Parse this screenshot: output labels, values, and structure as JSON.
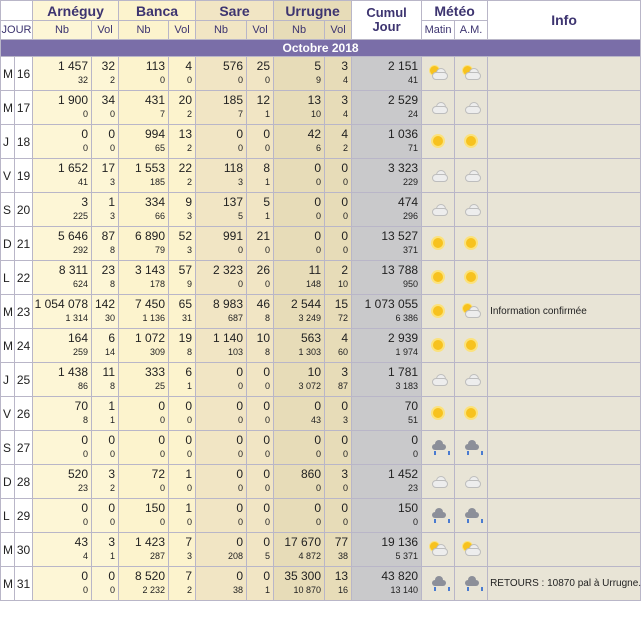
{
  "headers": {
    "sites": [
      "Arnéguy",
      "Banca",
      "Sare",
      "Urrugne"
    ],
    "cumul": "Cumul Jour",
    "meteo": "Météo",
    "info": "Info",
    "jour": "JOUR",
    "nb": "Nb",
    "vol": "Vol",
    "matin": "Matin",
    "am": "A.M."
  },
  "month_label": "Octobre 2018",
  "rows": [
    {
      "dow": "M",
      "day": "16",
      "arn": [
        "1 457",
        "32",
        "32",
        "2"
      ],
      "ban": [
        "113",
        "4",
        "0",
        "0"
      ],
      "sar": [
        "576",
        "25",
        "0",
        "0"
      ],
      "urr": [
        "5",
        "3",
        "9",
        "4"
      ],
      "cum": [
        "2 151",
        "41"
      ],
      "matin": "partly-sunny-icon",
      "am": "partly-sunny-icon",
      "info": ""
    },
    {
      "dow": "M",
      "day": "17",
      "arn": [
        "1 900",
        "34",
        "0",
        "0"
      ],
      "ban": [
        "431",
        "20",
        "7",
        "2"
      ],
      "sar": [
        "185",
        "12",
        "7",
        "1"
      ],
      "urr": [
        "13",
        "3",
        "10",
        "4"
      ],
      "cum": [
        "2 529",
        "24"
      ],
      "matin": "cloudy-icon",
      "am": "cloudy-icon",
      "info": ""
    },
    {
      "dow": "J",
      "day": "18",
      "arn": [
        "0",
        "0",
        "0",
        "0"
      ],
      "ban": [
        "994",
        "13",
        "65",
        "2"
      ],
      "sar": [
        "0",
        "0",
        "0",
        "0"
      ],
      "urr": [
        "42",
        "4",
        "6",
        "2"
      ],
      "cum": [
        "1 036",
        "71"
      ],
      "matin": "sunny-icon",
      "am": "sunny-icon",
      "info": ""
    },
    {
      "dow": "V",
      "day": "19",
      "arn": [
        "1 652",
        "17",
        "41",
        "3"
      ],
      "ban": [
        "1 553",
        "22",
        "185",
        "2"
      ],
      "sar": [
        "118",
        "8",
        "3",
        "1"
      ],
      "urr": [
        "0",
        "0",
        "0",
        "0"
      ],
      "cum": [
        "3 323",
        "229"
      ],
      "matin": "cloudy-icon",
      "am": "cloudy-icon",
      "info": ""
    },
    {
      "dow": "S",
      "day": "20",
      "arn": [
        "3",
        "1",
        "225",
        "3"
      ],
      "ban": [
        "334",
        "9",
        "66",
        "3"
      ],
      "sar": [
        "137",
        "5",
        "5",
        "1"
      ],
      "urr": [
        "0",
        "0",
        "0",
        "0"
      ],
      "cum": [
        "474",
        "296"
      ],
      "matin": "cloudy-icon",
      "am": "cloudy-icon",
      "info": ""
    },
    {
      "dow": "D",
      "day": "21",
      "arn": [
        "5 646",
        "87",
        "292",
        "8"
      ],
      "ban": [
        "6 890",
        "52",
        "79",
        "3"
      ],
      "sar": [
        "991",
        "21",
        "0",
        "0"
      ],
      "urr": [
        "0",
        "0",
        "0",
        "0"
      ],
      "cum": [
        "13 527",
        "371"
      ],
      "matin": "sunny-icon",
      "am": "sunny-icon",
      "info": ""
    },
    {
      "dow": "L",
      "day": "22",
      "arn": [
        "8 311",
        "23",
        "624",
        "8"
      ],
      "ban": [
        "3 143",
        "57",
        "178",
        "9"
      ],
      "sar": [
        "2 323",
        "26",
        "0",
        "0"
      ],
      "urr": [
        "11",
        "2",
        "148",
        "10"
      ],
      "cum": [
        "13 788",
        "950"
      ],
      "matin": "sunny-icon",
      "am": "sunny-icon",
      "info": ""
    },
    {
      "dow": "M",
      "day": "23",
      "arn": [
        "1 054 078",
        "142",
        "1 314",
        "30"
      ],
      "ban": [
        "7 450",
        "65",
        "1 136",
        "31"
      ],
      "sar": [
        "8 983",
        "46",
        "687",
        "8"
      ],
      "urr": [
        "2 544",
        "15",
        "3 249",
        "72"
      ],
      "cum": [
        "1 073 055",
        "6 386"
      ],
      "matin": "sunny-icon",
      "am": "partly-sunny-icon",
      "info": "Information confirmée"
    },
    {
      "dow": "M",
      "day": "24",
      "arn": [
        "164",
        "6",
        "259",
        "14"
      ],
      "ban": [
        "1 072",
        "19",
        "309",
        "8"
      ],
      "sar": [
        "1 140",
        "10",
        "103",
        "8"
      ],
      "urr": [
        "563",
        "4",
        "1 303",
        "60"
      ],
      "cum": [
        "2 939",
        "1 974"
      ],
      "matin": "sunny-icon",
      "am": "sunny-icon",
      "info": ""
    },
    {
      "dow": "J",
      "day": "25",
      "arn": [
        "1 438",
        "11",
        "86",
        "8"
      ],
      "ban": [
        "333",
        "6",
        "25",
        "1"
      ],
      "sar": [
        "0",
        "0",
        "0",
        "0"
      ],
      "urr": [
        "10",
        "3",
        "3 072",
        "87"
      ],
      "cum": [
        "1 781",
        "3 183"
      ],
      "matin": "cloudy-icon",
      "am": "cloudy-icon",
      "info": ""
    },
    {
      "dow": "V",
      "day": "26",
      "arn": [
        "70",
        "1",
        "8",
        "1"
      ],
      "ban": [
        "0",
        "0",
        "0",
        "0"
      ],
      "sar": [
        "0",
        "0",
        "0",
        "0"
      ],
      "urr": [
        "0",
        "0",
        "43",
        "3"
      ],
      "cum": [
        "70",
        "51"
      ],
      "matin": "sunny-icon",
      "am": "sunny-icon",
      "info": ""
    },
    {
      "dow": "S",
      "day": "27",
      "arn": [
        "0",
        "0",
        "0",
        "0"
      ],
      "ban": [
        "0",
        "0",
        "0",
        "0"
      ],
      "sar": [
        "0",
        "0",
        "0",
        "0"
      ],
      "urr": [
        "0",
        "0",
        "0",
        "0"
      ],
      "cum": [
        "0",
        "0"
      ],
      "matin": "rain-icon",
      "am": "rain-icon",
      "info": ""
    },
    {
      "dow": "D",
      "day": "28",
      "arn": [
        "520",
        "3",
        "23",
        "2"
      ],
      "ban": [
        "72",
        "1",
        "0",
        "0"
      ],
      "sar": [
        "0",
        "0",
        "0",
        "0"
      ],
      "urr": [
        "860",
        "3",
        "0",
        "0"
      ],
      "cum": [
        "1 452",
        "23"
      ],
      "matin": "cloudy-icon",
      "am": "cloudy-icon",
      "info": ""
    },
    {
      "dow": "L",
      "day": "29",
      "arn": [
        "0",
        "0",
        "0",
        "0"
      ],
      "ban": [
        "150",
        "1",
        "0",
        "0"
      ],
      "sar": [
        "0",
        "0",
        "0",
        "0"
      ],
      "urr": [
        "0",
        "0",
        "0",
        "0"
      ],
      "cum": [
        "150",
        "0"
      ],
      "matin": "rain-icon",
      "am": "rain-icon",
      "info": ""
    },
    {
      "dow": "M",
      "day": "30",
      "arn": [
        "43",
        "3",
        "4",
        "1"
      ],
      "ban": [
        "1 423",
        "7",
        "287",
        "3"
      ],
      "sar": [
        "0",
        "0",
        "208",
        "5"
      ],
      "urr": [
        "17 670",
        "77",
        "4 872",
        "38"
      ],
      "cum": [
        "19 136",
        "5 371"
      ],
      "matin": "partly-sunny-icon",
      "am": "partly-sunny-icon",
      "info": ""
    },
    {
      "dow": "M",
      "day": "31",
      "arn": [
        "0",
        "0",
        "0",
        "0"
      ],
      "ban": [
        "8 520",
        "7",
        "2 232",
        "2"
      ],
      "sar": [
        "0",
        "0",
        "38",
        "1"
      ],
      "urr": [
        "35 300",
        "13",
        "10 870",
        "16"
      ],
      "cum": [
        "43 820",
        "13 140"
      ],
      "matin": "rain-icon",
      "am": "rain-icon",
      "info": "RETOURS : 10870 pal à Urrugne."
    }
  ]
}
